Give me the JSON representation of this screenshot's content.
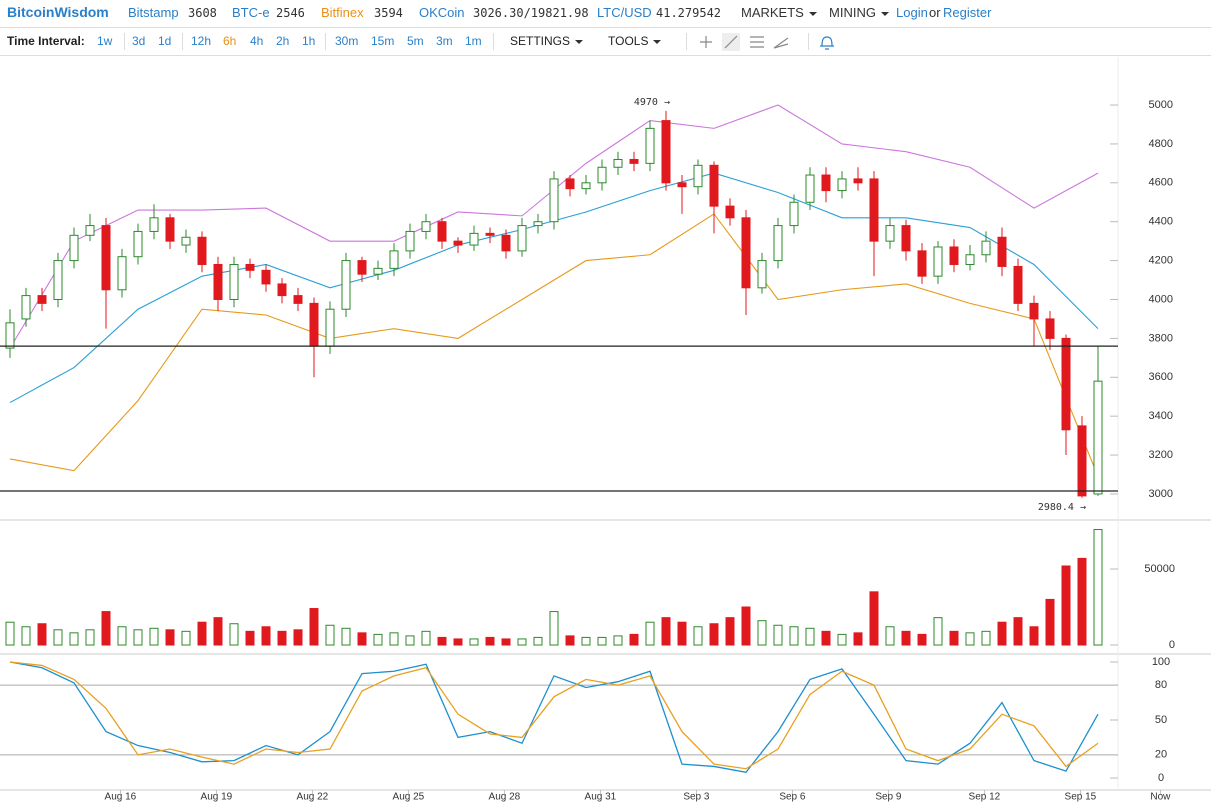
{
  "header": {
    "brand": "BitcoinWisdom",
    "markets": [
      {
        "name": "Bitstamp",
        "price": "3608"
      },
      {
        "name": "BTC-e",
        "price": "2546"
      },
      {
        "name": "Bitfinex",
        "price": "3594"
      },
      {
        "name": "OKCoin",
        "price": "3026.30/19821.98"
      },
      {
        "name": "LTC/USD",
        "price": "41.279542"
      }
    ],
    "active_market": 2,
    "menus": [
      "MARKETS",
      "MINING"
    ],
    "login": "Login",
    "or": "or",
    "register": "Register"
  },
  "toolbar": {
    "label": "Time Interval:",
    "intervals": [
      "1w",
      "3d",
      "1d",
      "12h",
      "6h",
      "4h",
      "2h",
      "1h",
      "30m",
      "15m",
      "5m",
      "3m",
      "1m"
    ],
    "active_interval": 4,
    "settings": "SETTINGS",
    "tools": "TOOLS"
  },
  "chart_data": [
    {
      "type": "candlestick",
      "up_color": "#2b8a2b",
      "down_color": "#e0191e",
      "open": [
        3750,
        3900,
        4020,
        4000,
        4200,
        4330,
        4380,
        4050,
        4220,
        4350,
        4420,
        4280,
        4320,
        4180,
        4000,
        4180,
        4150,
        4080,
        4020,
        3980,
        3760,
        3950,
        4200,
        4130,
        4160,
        4250,
        4350,
        4400,
        4300,
        4280,
        4340,
        4330,
        4250,
        4380,
        4400,
        4620,
        4570,
        4600,
        4680,
        4720,
        4700,
        4920,
        4600,
        4580,
        4690,
        4480,
        4420,
        4060,
        4200,
        4380,
        4500,
        4640,
        4560,
        4620,
        4620,
        4300,
        4380,
        4250,
        4120,
        4270,
        4180,
        4230,
        4320,
        4170,
        3980,
        3900,
        3800,
        3350,
        3000
      ],
      "high": [
        3950,
        4060,
        4060,
        4240,
        4370,
        4440,
        4420,
        4260,
        4390,
        4490,
        4440,
        4360,
        4350,
        4220,
        4220,
        4210,
        4180,
        4110,
        4060,
        4010,
        3990,
        4240,
        4220,
        4200,
        4290,
        4390,
        4440,
        4420,
        4320,
        4380,
        4370,
        4360,
        4420,
        4440,
        4660,
        4640,
        4640,
        4720,
        4760,
        4760,
        4920,
        4970,
        4640,
        4720,
        4710,
        4520,
        4460,
        4240,
        4420,
        4540,
        4680,
        4680,
        4660,
        4680,
        4660,
        4420,
        4410,
        4290,
        4300,
        4310,
        4280,
        4350,
        4370,
        4210,
        4020,
        3940,
        3820,
        3400,
        3760
      ],
      "low": [
        3700,
        3860,
        3940,
        3960,
        4160,
        4300,
        3850,
        4010,
        4180,
        4310,
        4260,
        4240,
        4140,
        3940,
        3960,
        4110,
        4040,
        3980,
        3940,
        3600,
        3720,
        3910,
        4090,
        4100,
        4120,
        4210,
        4310,
        4260,
        4240,
        4250,
        4290,
        4210,
        4220,
        4340,
        4360,
        4530,
        4540,
        4560,
        4640,
        4660,
        4660,
        4560,
        4440,
        4540,
        4340,
        4380,
        3920,
        4030,
        4160,
        4340,
        4460,
        4500,
        4520,
        4560,
        4120,
        4260,
        4200,
        4080,
        4080,
        4140,
        4150,
        4190,
        4120,
        3940,
        3760,
        3740,
        3200,
        2980.4,
        2990
      ],
      "close": [
        3880,
        4020,
        3980,
        4200,
        4330,
        4380,
        4050,
        4220,
        4350,
        4420,
        4300,
        4320,
        4180,
        4000,
        4180,
        4150,
        4080,
        4020,
        3980,
        3760,
        3950,
        4200,
        4130,
        4160,
        4250,
        4350,
        4400,
        4300,
        4280,
        4340,
        4330,
        4250,
        4380,
        4400,
        4620,
        4570,
        4600,
        4680,
        4720,
        4700,
        4880,
        4600,
        4580,
        4690,
        4480,
        4420,
        4060,
        4200,
        4380,
        4500,
        4640,
        4560,
        4620,
        4600,
        4300,
        4380,
        4250,
        4120,
        4270,
        4180,
        4230,
        4300,
        4170,
        3980,
        3900,
        3800,
        3330,
        2990,
        3580
      ],
      "lines": [
        {
          "color": "#cc77dd",
          "x": [
            0,
            4,
            8,
            12,
            16,
            20,
            24,
            28,
            32,
            36,
            40,
            44,
            48,
            52,
            56,
            60,
            64,
            68
          ],
          "values": [
            3750,
            4300,
            4460,
            4460,
            4470,
            4300,
            4300,
            4450,
            4430,
            4700,
            4920,
            4880,
            5000,
            4800,
            4760,
            4680,
            4470,
            4650
          ]
        },
        {
          "color": "#2a9fd6",
          "x": [
            0,
            4,
            8,
            12,
            16,
            20,
            24,
            28,
            32,
            36,
            40,
            44,
            48,
            52,
            56,
            60,
            64,
            68
          ],
          "values": [
            3470,
            3650,
            3950,
            4120,
            4180,
            4060,
            4150,
            4280,
            4360,
            4450,
            4560,
            4650,
            4550,
            4420,
            4420,
            4370,
            4180,
            3850
          ]
        },
        {
          "color": "#e69a1a",
          "x": [
            0,
            4,
            8,
            12,
            16,
            20,
            24,
            28,
            32,
            36,
            40,
            44,
            48,
            52,
            56,
            60,
            64,
            68
          ],
          "values": [
            3180,
            3120,
            3480,
            3950,
            3920,
            3800,
            3850,
            3800,
            4000,
            4200,
            4230,
            4440,
            4000,
            4050,
            4080,
            3980,
            3900,
            3090
          ]
        }
      ],
      "hlines": [
        3760,
        3015
      ],
      "annotations": [
        {
          "value": 4970,
          "label": "4970 →"
        },
        {
          "value": 2980.4,
          "label": "2980.4 →"
        }
      ],
      "xlim": [
        -0.625,
        69.25
      ],
      "ylim": [
        2866,
        5247
      ],
      "yticks": [
        3000,
        3200,
        3400,
        3600,
        3800,
        4000,
        4200,
        4400,
        4600,
        4800,
        5000
      ]
    },
    {
      "type": "bar",
      "values": [
        15000,
        12000,
        14000,
        10000,
        8000,
        10000,
        22000,
        12000,
        10000,
        11000,
        10000,
        9000,
        15000,
        18000,
        14000,
        9000,
        12000,
        9000,
        10000,
        24000,
        13000,
        11000,
        8000,
        7000,
        8000,
        6000,
        9000,
        5000,
        4000,
        4000,
        5000,
        4000,
        4000,
        5000,
        22000,
        6000,
        5000,
        5000,
        6000,
        7000,
        15000,
        18000,
        15000,
        12000,
        14000,
        18000,
        25000,
        16000,
        13000,
        12000,
        11000,
        9000,
        7000,
        8000,
        35000,
        12000,
        9000,
        7000,
        18000,
        9000,
        8000,
        9000,
        15000,
        18000,
        12000,
        30000,
        52000,
        57000,
        76000
      ],
      "ylim": [
        -4600,
        81600
      ],
      "yticks": [
        0,
        50000
      ]
    },
    {
      "type": "line",
      "series": [
        {
          "color": "#1c8fd0",
          "x": [
            0,
            2,
            4,
            6,
            8,
            10,
            12,
            14,
            16,
            18,
            20,
            22,
            24,
            26,
            28,
            30,
            32,
            34,
            36,
            38,
            40,
            42,
            44,
            46,
            48,
            50,
            52,
            54,
            56,
            58,
            60,
            62,
            64,
            66,
            68
          ],
          "values": [
            100,
            95,
            82,
            40,
            28,
            22,
            14,
            15,
            28,
            20,
            40,
            90,
            92,
            98,
            35,
            40,
            30,
            88,
            78,
            83,
            92,
            12,
            10,
            5,
            40,
            85,
            94,
            55,
            15,
            12,
            30,
            65,
            15,
            6,
            55
          ]
        },
        {
          "color": "#e8a020",
          "x": [
            0,
            2,
            4,
            6,
            8,
            10,
            12,
            14,
            16,
            18,
            20,
            22,
            24,
            26,
            28,
            30,
            32,
            34,
            36,
            38,
            40,
            42,
            44,
            46,
            48,
            50,
            52,
            54,
            56,
            58,
            60,
            62,
            64,
            66,
            68
          ],
          "values": [
            100,
            97,
            85,
            60,
            20,
            25,
            18,
            12,
            25,
            22,
            25,
            75,
            88,
            95,
            55,
            38,
            35,
            70,
            85,
            80,
            88,
            40,
            12,
            8,
            25,
            72,
            92,
            80,
            25,
            15,
            25,
            55,
            45,
            10,
            30
          ]
        }
      ],
      "gridlines": [
        20,
        80
      ],
      "ylim": [
        -10.3,
        106
      ],
      "yticks": [
        0,
        20,
        50,
        80,
        100
      ],
      "xticks": [
        {
          "value": 6.9,
          "label": "Aug 16"
        },
        {
          "value": 12.9,
          "label": "Aug 19"
        },
        {
          "value": 18.9,
          "label": "Aug 22"
        },
        {
          "value": 24.9,
          "label": "Aug 25"
        },
        {
          "value": 30.9,
          "label": "Aug 28"
        },
        {
          "value": 36.9,
          "label": "Aug 31"
        },
        {
          "value": 42.9,
          "label": "Sep 3"
        },
        {
          "value": 48.9,
          "label": "Sep 6"
        },
        {
          "value": 54.9,
          "label": "Sep 9"
        },
        {
          "value": 60.9,
          "label": "Sep 12"
        },
        {
          "value": 66.9,
          "label": "Sep 15"
        },
        {
          "value": 71.9,
          "label": "Now"
        }
      ]
    }
  ]
}
